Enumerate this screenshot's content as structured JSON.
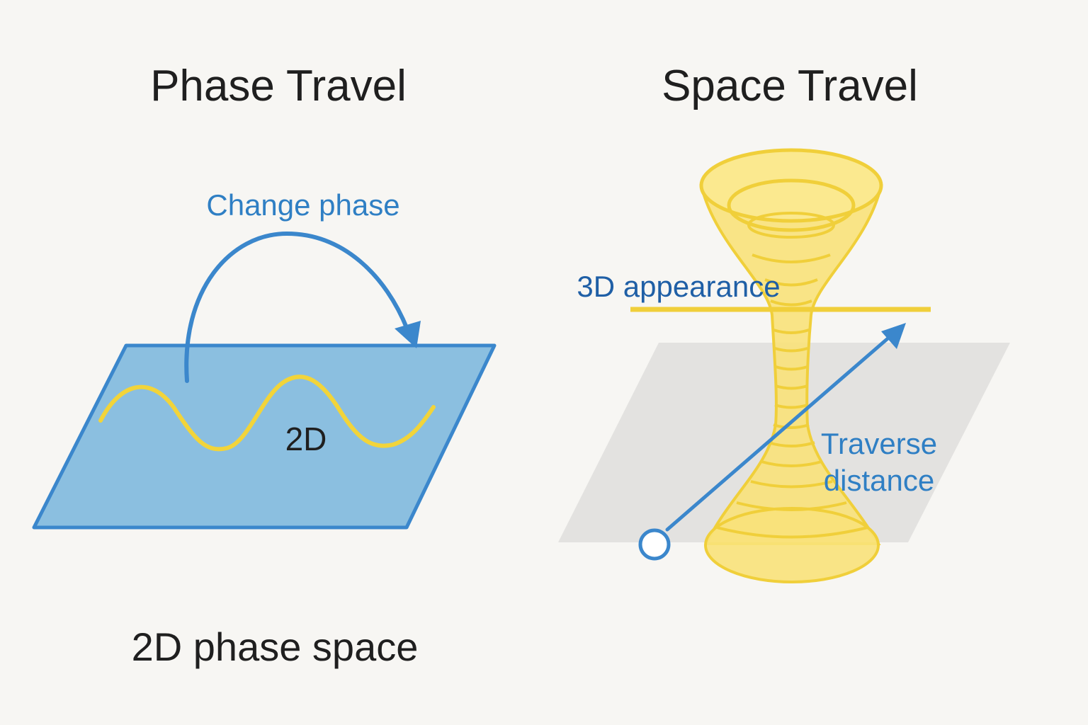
{
  "colors": {
    "background": "#f7f6f3",
    "plane_fill": "#8bbfe0",
    "plane_stroke": "#3b87cc",
    "wave": "#f2d43a",
    "arrow": "#3b87cc",
    "label_blue": "#2f7fc4",
    "label_dark_blue": "#1f5fa6",
    "wormhole_fill": "#f8e27a",
    "wormhole_stroke": "#f0cf3a",
    "floor": "#e3e2e0",
    "text_dark": "#1f1f1f"
  },
  "left": {
    "title": "Phase Travel",
    "arrow_label": "Change phase",
    "plane_label": "2D",
    "caption": "2D phase space"
  },
  "right": {
    "title": "Space Travel",
    "appearance_label": "3D appearance",
    "traverse_label_line1": "Traverse",
    "traverse_label_line2": "distance"
  },
  "icons": {
    "arc_arrow": "curved-arrow-icon",
    "start_point": "circle-icon",
    "diagonal_arrow": "arrow-up-right-icon"
  }
}
